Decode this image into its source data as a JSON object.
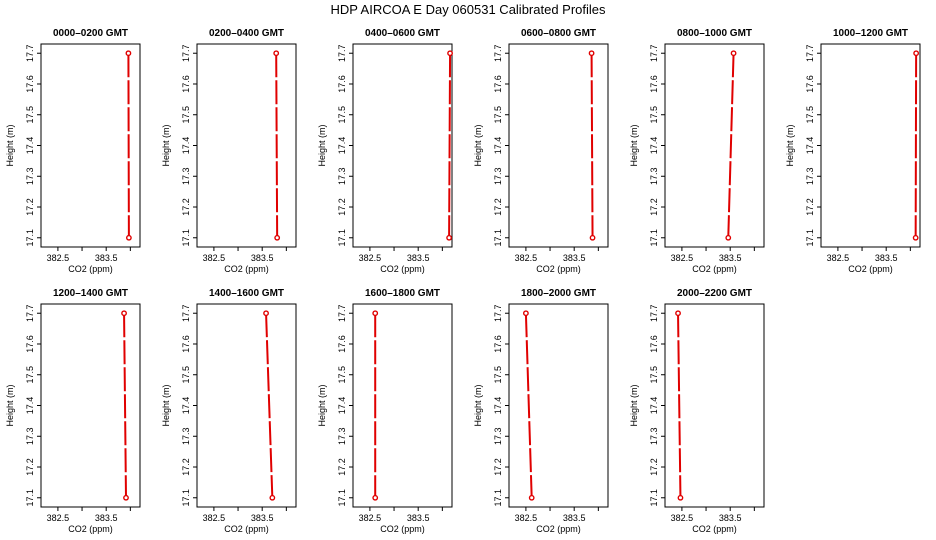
{
  "figure": {
    "title": "HDP  AIRCOA E  Day 060531  Calibrated Profiles"
  },
  "colors": {
    "series": "#e00000",
    "axis": "#000000"
  },
  "chart_data": [
    {
      "type": "line",
      "title": "0000–0200 GMT",
      "xlabel": "CO2 (ppm)",
      "ylabel": "Height (m)",
      "xlim": [
        382.15,
        384.2
      ],
      "ylim": [
        17.07,
        17.73
      ],
      "xticks": [
        "382.5",
        "383.5"
      ],
      "yticks": [
        "17.1",
        "17.2",
        "17.3",
        "17.4",
        "17.5",
        "17.6",
        "17.7"
      ],
      "points": [
        {
          "x": 383.96,
          "y": 17.7
        },
        {
          "x": 383.97,
          "y": 17.1
        }
      ]
    },
    {
      "type": "line",
      "title": "0200–0400 GMT",
      "xlabel": "CO2 (ppm)",
      "ylabel": "Height (m)",
      "xlim": [
        382.15,
        384.2
      ],
      "ylim": [
        17.07,
        17.73
      ],
      "xticks": [
        "382.5",
        "383.5"
      ],
      "yticks": [
        "17.1",
        "17.2",
        "17.3",
        "17.4",
        "17.5",
        "17.6",
        "17.7"
      ],
      "points": [
        {
          "x": 383.79,
          "y": 17.7
        },
        {
          "x": 383.81,
          "y": 17.1
        }
      ]
    },
    {
      "type": "line",
      "title": "0400–0600 GMT",
      "xlabel": "CO2 (ppm)",
      "ylabel": "Height (m)",
      "xlim": [
        382.15,
        384.2
      ],
      "ylim": [
        17.07,
        17.73
      ],
      "xticks": [
        "382.5",
        "383.5"
      ],
      "yticks": [
        "17.1",
        "17.2",
        "17.3",
        "17.4",
        "17.5",
        "17.6",
        "17.7"
      ],
      "points": [
        {
          "x": 384.16,
          "y": 17.7
        },
        {
          "x": 384.14,
          "y": 17.1
        }
      ]
    },
    {
      "type": "line",
      "title": "0600–0800 GMT",
      "xlabel": "CO2 (ppm)",
      "ylabel": "Height (m)",
      "xlim": [
        382.15,
        384.2
      ],
      "ylim": [
        17.07,
        17.73
      ],
      "xticks": [
        "382.5",
        "383.5"
      ],
      "yticks": [
        "17.1",
        "17.2",
        "17.3",
        "17.4",
        "17.5",
        "17.6",
        "17.7"
      ],
      "points": [
        {
          "x": 383.86,
          "y": 17.7
        },
        {
          "x": 383.88,
          "y": 17.1
        }
      ]
    },
    {
      "type": "line",
      "title": "0800–1000 GMT",
      "xlabel": "CO2 (ppm)",
      "ylabel": "Height (m)",
      "xlim": [
        382.15,
        384.2
      ],
      "ylim": [
        17.07,
        17.73
      ],
      "xticks": [
        "382.5",
        "383.5"
      ],
      "yticks": [
        "17.1",
        "17.2",
        "17.3",
        "17.4",
        "17.5",
        "17.6",
        "17.7"
      ],
      "points": [
        {
          "x": 383.57,
          "y": 17.7
        },
        {
          "x": 383.46,
          "y": 17.1
        }
      ]
    },
    {
      "type": "line",
      "title": "1000–1200 GMT",
      "xlabel": "CO2 (ppm)",
      "ylabel": "Height (m)",
      "xlim": [
        382.15,
        384.2
      ],
      "ylim": [
        17.07,
        17.73
      ],
      "xticks": [
        "382.5",
        "383.5"
      ],
      "yticks": [
        "17.1",
        "17.2",
        "17.3",
        "17.4",
        "17.5",
        "17.6",
        "17.7"
      ],
      "points": [
        {
          "x": 384.12,
          "y": 17.7
        },
        {
          "x": 384.11,
          "y": 17.1
        }
      ]
    },
    {
      "type": "line",
      "title": "1200–1400 GMT",
      "xlabel": "CO2 (ppm)",
      "ylabel": "Height (m)",
      "xlim": [
        382.15,
        384.2
      ],
      "ylim": [
        17.07,
        17.73
      ],
      "xticks": [
        "382.5",
        "383.5"
      ],
      "yticks": [
        "17.1",
        "17.2",
        "17.3",
        "17.4",
        "17.5",
        "17.6",
        "17.7"
      ],
      "points": [
        {
          "x": 383.87,
          "y": 17.7
        },
        {
          "x": 383.91,
          "y": 17.1
        }
      ]
    },
    {
      "type": "line",
      "title": "1400–1600 GMT",
      "xlabel": "CO2 (ppm)",
      "ylabel": "Height (m)",
      "xlim": [
        382.15,
        384.2
      ],
      "ylim": [
        17.07,
        17.73
      ],
      "xticks": [
        "382.5",
        "383.5"
      ],
      "yticks": [
        "17.1",
        "17.2",
        "17.3",
        "17.4",
        "17.5",
        "17.6",
        "17.7"
      ],
      "points": [
        {
          "x": 383.58,
          "y": 17.7
        },
        {
          "x": 383.71,
          "y": 17.1
        }
      ]
    },
    {
      "type": "line",
      "title": "1600–1800 GMT",
      "xlabel": "CO2 (ppm)",
      "ylabel": "Height (m)",
      "xlim": [
        382.15,
        384.2
      ],
      "ylim": [
        17.07,
        17.73
      ],
      "xticks": [
        "382.5",
        "383.5"
      ],
      "yticks": [
        "17.1",
        "17.2",
        "17.3",
        "17.4",
        "17.5",
        "17.6",
        "17.7"
      ],
      "points": [
        {
          "x": 382.61,
          "y": 17.7
        },
        {
          "x": 382.61,
          "y": 17.1
        }
      ]
    },
    {
      "type": "line",
      "title": "1800–2000 GMT",
      "xlabel": "CO2 (ppm)",
      "ylabel": "Height (m)",
      "xlim": [
        382.15,
        384.2
      ],
      "ylim": [
        17.07,
        17.73
      ],
      "xticks": [
        "382.5",
        "383.5"
      ],
      "yticks": [
        "17.1",
        "17.2",
        "17.3",
        "17.4",
        "17.5",
        "17.6",
        "17.7"
      ],
      "points": [
        {
          "x": 382.5,
          "y": 17.7
        },
        {
          "x": 382.62,
          "y": 17.1
        }
      ]
    },
    {
      "type": "line",
      "title": "2000–2200 GMT",
      "xlabel": "CO2 (ppm)",
      "ylabel": "Height (m)",
      "xlim": [
        382.15,
        384.2
      ],
      "ylim": [
        17.07,
        17.73
      ],
      "xticks": [
        "382.5",
        "383.5"
      ],
      "yticks": [
        "17.1",
        "17.2",
        "17.3",
        "17.4",
        "17.5",
        "17.6",
        "17.7"
      ],
      "points": [
        {
          "x": 382.42,
          "y": 17.7
        },
        {
          "x": 382.47,
          "y": 17.1
        }
      ]
    }
  ]
}
